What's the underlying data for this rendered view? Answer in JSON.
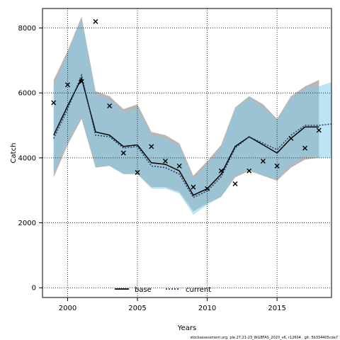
{
  "chart_data": {
    "type": "line",
    "xlabel": "Years",
    "ylabel": "Catch",
    "xlim": [
      1998.2,
      2018.9
    ],
    "ylim": [
      -300,
      8600
    ],
    "x_ticks": [
      2000,
      2005,
      2010,
      2015
    ],
    "y_ticks": [
      0,
      2000,
      4000,
      6000,
      8000
    ],
    "grid": "dotted at major ticks",
    "legend_position": "bottom-center",
    "series": [
      {
        "name": "base",
        "color": "#000000",
        "dash": "solid",
        "band_color": "#aaaaaa",
        "x": [
          1999,
          2000,
          2001,
          2002,
          2003,
          2004,
          2005,
          2006,
          2007,
          2008,
          2009,
          2010,
          2011,
          2012,
          2013,
          2014,
          2015,
          2016,
          2017,
          2018
        ],
        "median": [
          4700,
          5600,
          6450,
          4800,
          4700,
          4350,
          4400,
          3850,
          3800,
          3600,
          2850,
          3050,
          3500,
          4350,
          4650,
          4400,
          4150,
          4600,
          4950,
          4950
        ],
        "lower": [
          3400,
          4400,
          5200,
          3700,
          3750,
          3500,
          3500,
          3100,
          3100,
          2950,
          2350,
          2600,
          2800,
          3400,
          3600,
          3450,
          3300,
          3700,
          3950,
          4000
        ],
        "upper": [
          6400,
          7300,
          8350,
          6050,
          5900,
          5500,
          5650,
          4800,
          4700,
          4450,
          3450,
          3900,
          4400,
          5550,
          5900,
          5650,
          5200,
          5900,
          6200,
          6400
        ]
      },
      {
        "name": "current",
        "color": "#1f3a6e",
        "dash": "dotted",
        "band_color": "#87ceeb",
        "x": [
          1999,
          2000,
          2001,
          2002,
          2003,
          2004,
          2005,
          2006,
          2007,
          2008,
          2009,
          2010,
          2011,
          2012,
          2013,
          2014,
          2015,
          2016,
          2017,
          2018,
          2019
        ],
        "median": [
          4600,
          5500,
          6550,
          4700,
          4650,
          4300,
          4350,
          3750,
          3700,
          3500,
          2780,
          2980,
          3420,
          4300,
          4650,
          4450,
          4250,
          4700,
          5000,
          5000,
          5050
        ],
        "lower": [
          3550,
          4500,
          5300,
          3750,
          3750,
          3500,
          3500,
          3050,
          3050,
          2900,
          2250,
          2550,
          2800,
          3450,
          3650,
          3450,
          3350,
          3800,
          4050,
          4000,
          4000
        ],
        "upper": [
          6200,
          7200,
          8300,
          5950,
          5800,
          5400,
          5500,
          4700,
          4600,
          4350,
          3350,
          3800,
          4300,
          5500,
          5850,
          5550,
          5150,
          5800,
          6150,
          6200,
          6350
        ]
      }
    ],
    "observations": {
      "marker": "x",
      "x": [
        1999,
        2000,
        2001,
        2002,
        2003,
        2004,
        2005,
        2006,
        2007,
        2008,
        2009,
        2010,
        2011,
        2012,
        2013,
        2014,
        2015,
        2016,
        2017,
        2018
      ],
      "y": [
        5700,
        6250,
        6350,
        8200,
        5600,
        4150,
        3550,
        4350,
        3900,
        3750,
        3100,
        3050,
        3600,
        3200,
        3600,
        3900,
        3750,
        4600,
        4300,
        4850
      ]
    }
  },
  "footer_text": "stockassessment.org, ple.27.21-23_WGBFAS_2020_v6, r12604 , git: 5b334405cda7"
}
